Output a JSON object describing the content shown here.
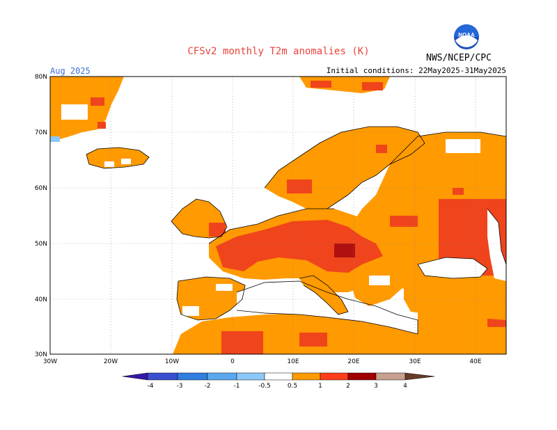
{
  "header": {
    "title": "CFSv2 monthly T2m anomalies (K)",
    "month": "Aug 2025",
    "initial_conditions": "Initial conditions: 22May2025-31May2025",
    "agency": "NWS/NCEP/CPC",
    "logo_text": "NOAA"
  },
  "map": {
    "lat_labels": [
      "80N",
      "70N",
      "60N",
      "50N",
      "40N",
      "30N"
    ],
    "lon_labels": [
      "30W",
      "20W",
      "10W",
      "0",
      "10E",
      "20E",
      "30E",
      "40E"
    ],
    "lon_range": [
      -30,
      45
    ],
    "lat_range": [
      30,
      80
    ]
  },
  "colorbar": {
    "labels": [
      "-4",
      "-3",
      "-2",
      "-1",
      "-0.5",
      "0.5",
      "1",
      "2",
      "3",
      "4"
    ],
    "colors": [
      "#3518a8",
      "#3a4fd0",
      "#2f7ee0",
      "#5aa8f0",
      "#8cc8f8",
      "#ffffff",
      "#ff9a00",
      "#ff3d1a",
      "#a00000",
      "#c8a090",
      "#6a3a2a"
    ]
  },
  "palette": {
    "orange": "#ff9a00",
    "red": "#f0441c",
    "darkred": "#b01010",
    "lightblue": "#8cc8f8"
  }
}
